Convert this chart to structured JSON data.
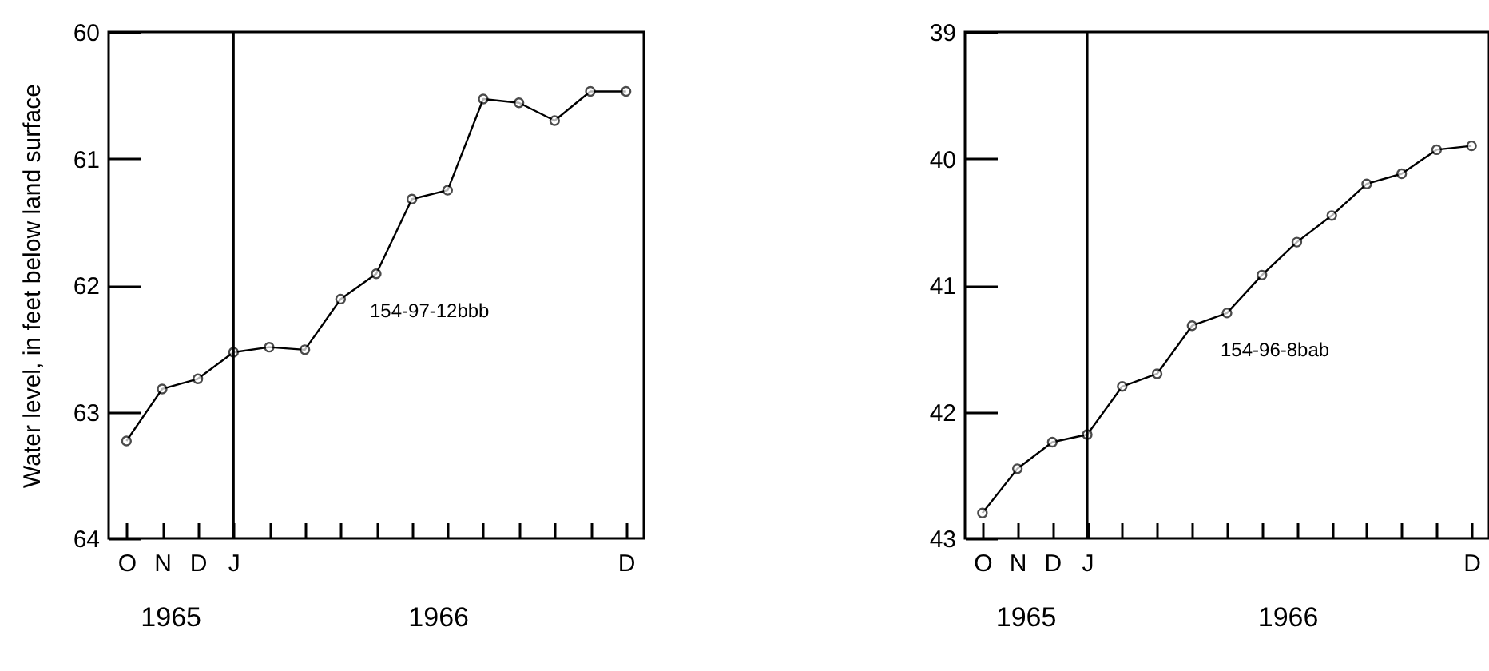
{
  "chart_data": [
    {
      "type": "line",
      "ylabel": "Water level, in feet below land surface",
      "ylim": [
        64,
        60
      ],
      "yticks": [
        60,
        61,
        62,
        63,
        64
      ],
      "categories": [
        "O",
        "N",
        "D",
        "J",
        null,
        null,
        null,
        null,
        null,
        null,
        null,
        null,
        null,
        null,
        "D"
      ],
      "series": [
        {
          "name": "154-97-12bbb",
          "color": "#000000",
          "values": [
            63.23,
            62.82,
            62.74,
            62.53,
            62.49,
            62.51,
            62.11,
            61.91,
            61.32,
            61.25,
            60.53,
            60.56,
            60.7,
            60.47,
            60.47
          ]
        }
      ],
      "marker": "circle",
      "ref_lines": [
        {
          "axis": "x",
          "value": "J"
        }
      ],
      "annotations": [
        "1965",
        "1966"
      ]
    },
    {
      "type": "line",
      "ylim": [
        43,
        39
      ],
      "yticks": [
        39,
        40,
        41,
        42,
        43
      ],
      "categories": [
        "O",
        "N",
        "D",
        "J",
        null,
        null,
        null,
        null,
        null,
        null,
        null,
        null,
        null,
        null,
        "D"
      ],
      "series": [
        {
          "name": "154-96-8bab",
          "color": "#000000",
          "values": [
            42.8,
            42.45,
            42.24,
            42.18,
            41.8,
            41.7,
            41.32,
            41.22,
            40.92,
            40.66,
            40.45,
            40.2,
            40.12,
            39.93,
            39.9
          ]
        }
      ],
      "marker": "circle",
      "ref_lines": [
        {
          "axis": "x",
          "value": "J"
        }
      ],
      "annotations": [
        "1965",
        "1966"
      ]
    }
  ]
}
